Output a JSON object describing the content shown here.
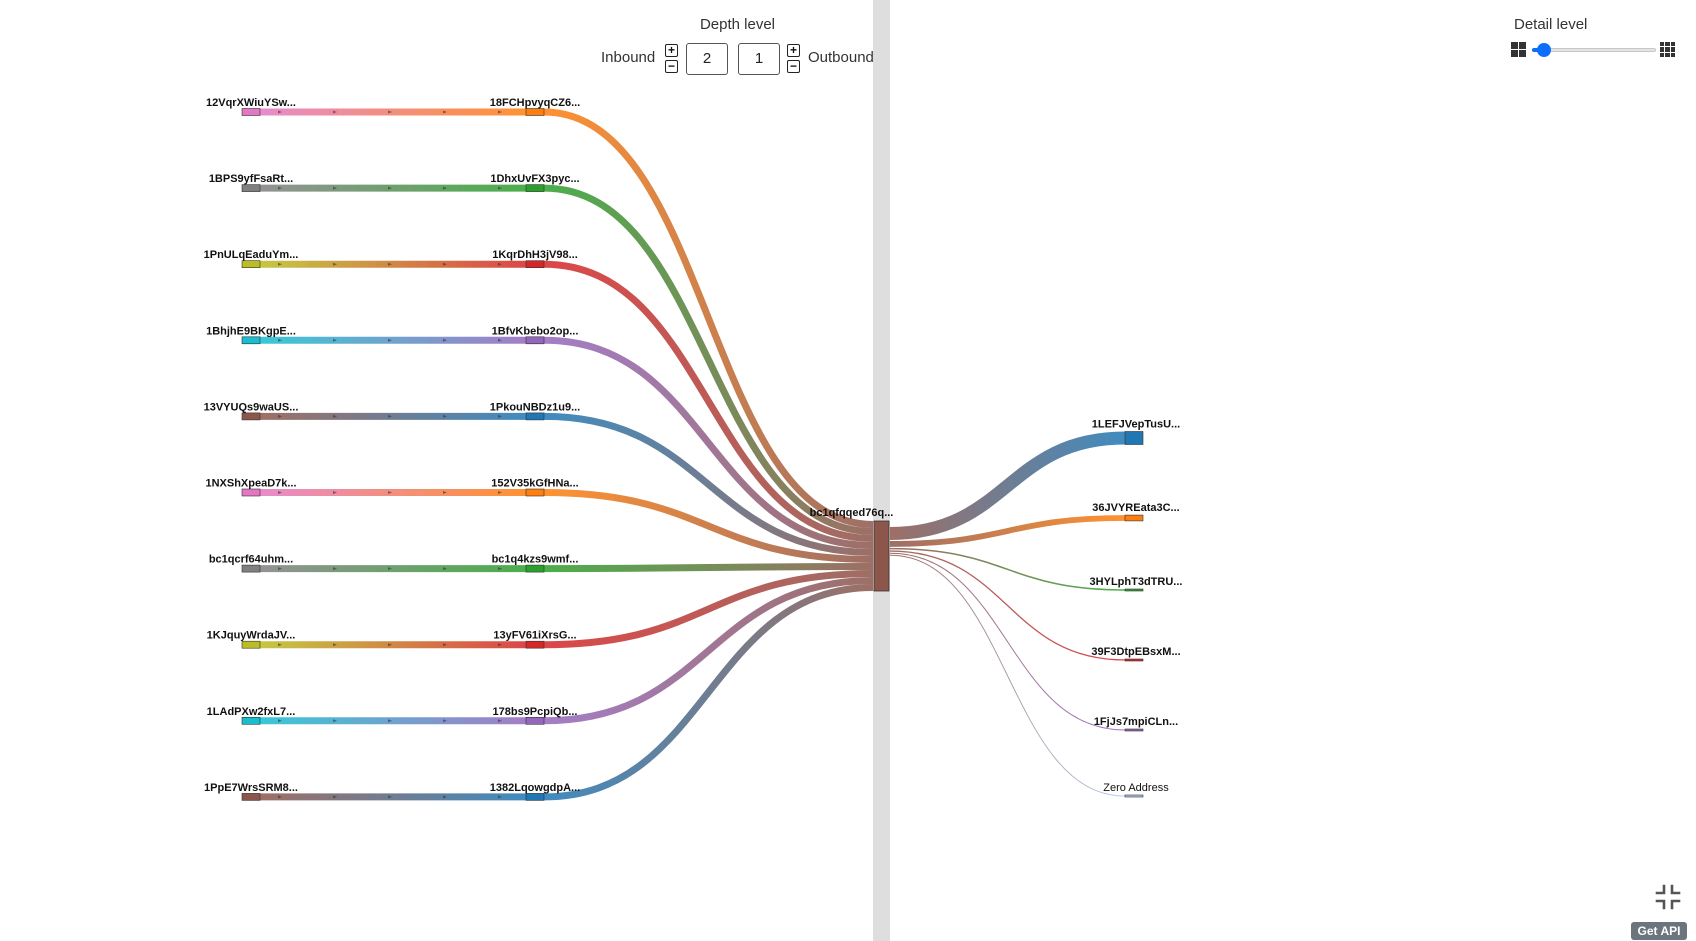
{
  "depth": {
    "title": "Depth level",
    "inbound_label": "Inbound",
    "outbound_label": "Outbound",
    "inbound_value": "2",
    "outbound_value": "1",
    "plus": "+",
    "minus": "−"
  },
  "detail": {
    "title": "Detail level",
    "level_fraction": 0.1,
    "icon_coarse": "grid-2x2-icon",
    "icon_fine": "grid-3x3-icon"
  },
  "get_api_label": "Get API",
  "collapse_icon": "compress-icon",
  "center": {
    "label": "bc1qfqqed76q...",
    "color": "#8c564b"
  },
  "inbound_far": [
    {
      "label": "12VqrXWiuYSw...",
      "color": "#e377c2"
    },
    {
      "label": "1BPS9yfFsaRt...",
      "color": "#7f7f7f"
    },
    {
      "label": "1PnULqEaduYm...",
      "color": "#bcbd22"
    },
    {
      "label": "1BhjhE9BKgpE...",
      "color": "#17becf"
    },
    {
      "label": "13VYUQs9waUS...",
      "color": "#8c564b"
    },
    {
      "label": "1NXShXpeaD7k...",
      "color": "#e377c2"
    },
    {
      "label": "bc1qcrf64uhm...",
      "color": "#7f7f7f"
    },
    {
      "label": "1KJquyWrdaJV...",
      "color": "#bcbd22"
    },
    {
      "label": "1LAdPXw2fxL7...",
      "color": "#17becf"
    },
    {
      "label": "1PpE7WrsSRM8...",
      "color": "#8c564b"
    }
  ],
  "inbound_near": [
    {
      "label": "18FCHpvyqCZ6...",
      "color": "#ff7f0e"
    },
    {
      "label": "1DhxUvFX3pyc...",
      "color": "#2ca02c"
    },
    {
      "label": "1KqrDhH3jV98...",
      "color": "#d62728"
    },
    {
      "label": "1BfvKbebo2op...",
      "color": "#9467bd"
    },
    {
      "label": "1PkouNBDz1u9...",
      "color": "#1f77b4"
    },
    {
      "label": "152V35kGfHNa...",
      "color": "#ff7f0e"
    },
    {
      "label": "bc1q4kzs9wmf...",
      "color": "#2ca02c"
    },
    {
      "label": "13yFV61iXrsG...",
      "color": "#d62728"
    },
    {
      "label": "178bs9PcpiQb...",
      "color": "#9467bd"
    },
    {
      "label": "1382LqowgdpA...",
      "color": "#1f77b4"
    }
  ],
  "outbound": [
    {
      "label": "1LEFJVepTusU...",
      "color": "#1f77b4",
      "weight": 1.0
    },
    {
      "label": "36JVYREata3C...",
      "color": "#ff7f0e",
      "weight": 0.45
    },
    {
      "label": "3HYLphT3dTRU...",
      "color": "#2ca02c",
      "weight": 0.12
    },
    {
      "label": "39F3DtpEBsxM...",
      "color": "#d62728",
      "weight": 0.1
    },
    {
      "label": "1FjJs7mpiCLn...",
      "color": "#9467bd",
      "weight": 0.06
    },
    {
      "label": "Zero Address",
      "color": "#aec7e8",
      "weight": 0.04
    }
  ]
}
